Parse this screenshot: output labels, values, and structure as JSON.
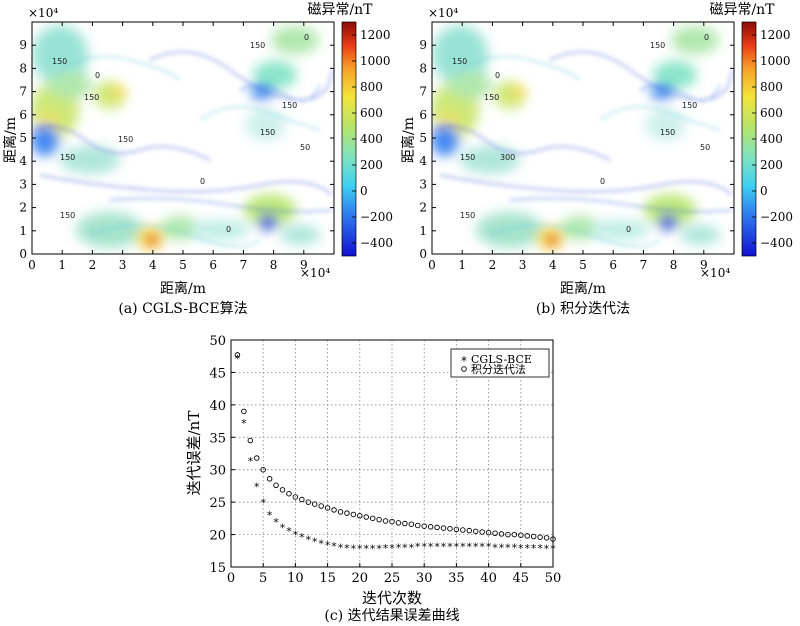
{
  "chart_data": [
    {
      "type": "heatmap",
      "caption": "(a) CGLS-BCE算法",
      "xlabel": "距离/m",
      "ylabel": "距离/m",
      "x_exponent": "×10⁴",
      "y_exponent": "×10⁴",
      "xlim": [
        0,
        10
      ],
      "ylim": [
        0,
        10
      ],
      "x_ticks": [
        "0",
        "1",
        "2",
        "3",
        "4",
        "5",
        "6",
        "7",
        "8",
        "9"
      ],
      "y_ticks": [
        "0",
        "1",
        "2",
        "3",
        "4",
        "5",
        "6",
        "7",
        "8",
        "9"
      ],
      "colorbar": {
        "title": "磁异常/nT",
        "range": [
          -500,
          1300
        ],
        "ticks": [
          "1200",
          "1000",
          "800",
          "600",
          "400",
          "200",
          "0",
          "−200",
          "−400"
        ]
      },
      "contour_labels": [
        "150",
        "150",
        "150",
        "150",
        "150",
        "150",
        "150",
        "150",
        "50",
        "0",
        "0",
        "0",
        "0"
      ]
    },
    {
      "type": "heatmap",
      "caption": "(b) 积分迭代法",
      "xlabel": "距离/m",
      "ylabel": "距离/m",
      "x_exponent": "×10⁴",
      "y_exponent": "×10⁴",
      "xlim": [
        0,
        10
      ],
      "ylim": [
        0,
        10
      ],
      "x_ticks": [
        "0",
        "1",
        "2",
        "3",
        "4",
        "5",
        "6",
        "7",
        "8",
        "9"
      ],
      "y_ticks": [
        "0",
        "1",
        "2",
        "3",
        "4",
        "5",
        "6",
        "7",
        "8",
        "9"
      ],
      "colorbar": {
        "title": "磁异常/nT",
        "range": [
          -500,
          1300
        ],
        "ticks": [
          "1200",
          "1000",
          "800",
          "600",
          "400",
          "200",
          "0",
          "−200",
          "−400"
        ]
      },
      "contour_labels": [
        "150",
        "150",
        "150",
        "150",
        "150",
        "150",
        "300",
        "150",
        "50",
        "0",
        "0",
        "0",
        "0"
      ]
    },
    {
      "type": "scatter",
      "caption": "(c) 迭代结果误差曲线",
      "xlabel": "迭代次数",
      "ylabel": "迭代误差/nT",
      "xlim": [
        0,
        50
      ],
      "ylim": [
        15,
        50
      ],
      "x_ticks": [
        0,
        5,
        10,
        15,
        20,
        25,
        30,
        35,
        40,
        45,
        50
      ],
      "y_ticks": [
        15,
        20,
        25,
        30,
        35,
        40,
        45,
        50
      ],
      "grid": true,
      "legend_position": "top-right",
      "x": [
        1,
        2,
        3,
        4,
        5,
        6,
        7,
        8,
        9,
        10,
        11,
        12,
        13,
        14,
        15,
        16,
        17,
        18,
        19,
        20,
        21,
        22,
        23,
        24,
        25,
        26,
        27,
        28,
        29,
        30,
        31,
        32,
        33,
        34,
        35,
        36,
        37,
        38,
        39,
        40,
        41,
        42,
        43,
        44,
        45,
        46,
        47,
        48,
        49,
        50
      ],
      "series": [
        {
          "name": "CGLS-BCE",
          "marker": "*",
          "values": [
            47.2,
            37.3,
            31.4,
            27.5,
            25.0,
            23.1,
            22.0,
            21.2,
            20.6,
            20.1,
            19.7,
            19.3,
            19.0,
            18.7,
            18.5,
            18.3,
            18.1,
            18.0,
            17.9,
            17.9,
            17.9,
            17.9,
            17.9,
            18.0,
            18.0,
            18.1,
            18.1,
            18.1,
            18.2,
            18.2,
            18.2,
            18.2,
            18.2,
            18.2,
            18.2,
            18.2,
            18.2,
            18.2,
            18.2,
            18.2,
            18.1,
            18.1,
            18.1,
            18.1,
            18.0,
            18.0,
            18.0,
            18.0,
            17.9,
            17.9
          ]
        },
        {
          "name": "积分迭代法",
          "marker": "o",
          "values": [
            47.7,
            39.0,
            34.5,
            31.8,
            30.0,
            28.6,
            27.6,
            26.9,
            26.3,
            25.8,
            25.4,
            25.0,
            24.7,
            24.4,
            24.1,
            23.8,
            23.5,
            23.3,
            23.1,
            22.9,
            22.7,
            22.5,
            22.3,
            22.1,
            22.0,
            21.8,
            21.7,
            21.6,
            21.4,
            21.3,
            21.2,
            21.1,
            21.0,
            20.9,
            20.8,
            20.7,
            20.6,
            20.5,
            20.4,
            20.3,
            20.2,
            20.1,
            20.0,
            20.0,
            19.9,
            19.8,
            19.7,
            19.6,
            19.5,
            19.3
          ]
        }
      ]
    }
  ]
}
